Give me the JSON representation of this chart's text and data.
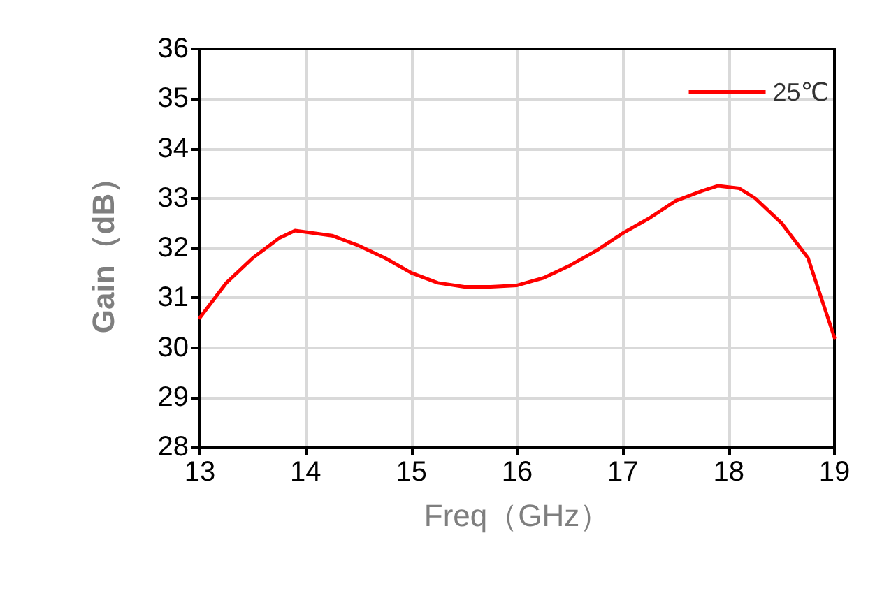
{
  "chart_data": {
    "type": "line",
    "xlabel": "Freq（GHz）",
    "ylabel": "Gain（dB）",
    "x": [
      13,
      13.25,
      13.5,
      13.75,
      13.9,
      14.25,
      14.5,
      14.75,
      15,
      15.25,
      15.5,
      15.75,
      16,
      16.25,
      16.5,
      16.75,
      17,
      17.25,
      17.5,
      17.75,
      17.9,
      18.1,
      18.25,
      18.5,
      18.75,
      19
    ],
    "series": [
      {
        "name": "25℃",
        "color": "#ff0000",
        "values": [
          30.6,
          31.3,
          31.8,
          32.2,
          32.35,
          32.25,
          32.05,
          31.8,
          31.5,
          31.3,
          31.22,
          31.22,
          31.25,
          31.4,
          31.65,
          31.95,
          32.3,
          32.6,
          32.95,
          33.15,
          33.25,
          33.2,
          33.0,
          32.5,
          31.8,
          30.2
        ]
      }
    ],
    "xlim": [
      13,
      19
    ],
    "xticks": [
      13,
      14,
      15,
      16,
      17,
      18,
      19
    ],
    "ylim": [
      28,
      36
    ],
    "yticks": [
      28,
      29,
      30,
      31,
      32,
      33,
      34,
      35,
      36
    ],
    "grid": true,
    "legend": "top right",
    "marker": "none",
    "line_style": "solid"
  }
}
